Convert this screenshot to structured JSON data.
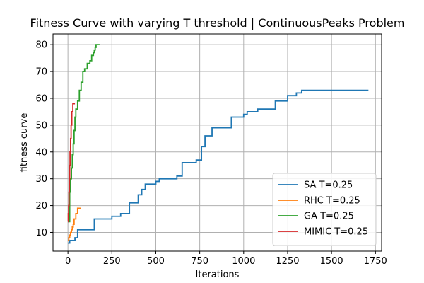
{
  "chart_data": {
    "type": "line",
    "title": "Fitness Curve with varying T threshold | ContinuousPeaks Problem",
    "xlabel": "Iterations",
    "ylabel": "fitness curve",
    "xlim": [
      -85,
      1785
    ],
    "ylim": [
      3,
      84
    ],
    "xticks": [
      0,
      250,
      500,
      750,
      1000,
      1250,
      1500,
      1750
    ],
    "yticks": [
      10,
      20,
      30,
      40,
      50,
      60,
      70,
      80
    ],
    "grid": true,
    "legend_position": "lower-right",
    "series": [
      {
        "name": "SA T=0.25",
        "color": "#1f77b4",
        "step": true,
        "x": [
          0,
          10,
          40,
          55,
          150,
          250,
          300,
          350,
          400,
          420,
          440,
          500,
          520,
          620,
          650,
          730,
          760,
          780,
          820,
          930,
          1000,
          1020,
          1080,
          1180,
          1250,
          1300,
          1330,
          1710
        ],
        "y": [
          6,
          7,
          8,
          11,
          15,
          16,
          17,
          21,
          24,
          26,
          28,
          29,
          30,
          31,
          36,
          37,
          42,
          46,
          49,
          53,
          54,
          55,
          56,
          59,
          61,
          62,
          63,
          63
        ]
      },
      {
        "name": "RHC T=0.25",
        "color": "#ff7f0e",
        "step": true,
        "x": [
          0,
          5,
          10,
          15,
          20,
          25,
          30,
          35,
          45,
          55,
          75
        ],
        "y": [
          7,
          8,
          9,
          10,
          11,
          12,
          13,
          15,
          17,
          19,
          19
        ]
      },
      {
        "name": "GA T=0.25",
        "color": "#2ca02c",
        "step": true,
        "x": [
          0,
          10,
          15,
          20,
          25,
          30,
          35,
          40,
          45,
          55,
          65,
          75,
          85,
          95,
          110,
          125,
          135,
          145,
          150,
          155,
          160,
          165,
          170,
          180
        ],
        "y": [
          14,
          25,
          30,
          34,
          39,
          43,
          48,
          53,
          56,
          59,
          63,
          66,
          70,
          71,
          73,
          74,
          76,
          77,
          78,
          79,
          80,
          80,
          80,
          80
        ]
      },
      {
        "name": "MIMIC T=0.25",
        "color": "#d62728",
        "step": true,
        "x": [
          0,
          2,
          4,
          6,
          8,
          10,
          12,
          15,
          18,
          22,
          28,
          40
        ],
        "y": [
          14,
          17,
          20,
          25,
          30,
          35,
          40,
          45,
          50,
          55,
          58,
          58
        ]
      }
    ]
  }
}
